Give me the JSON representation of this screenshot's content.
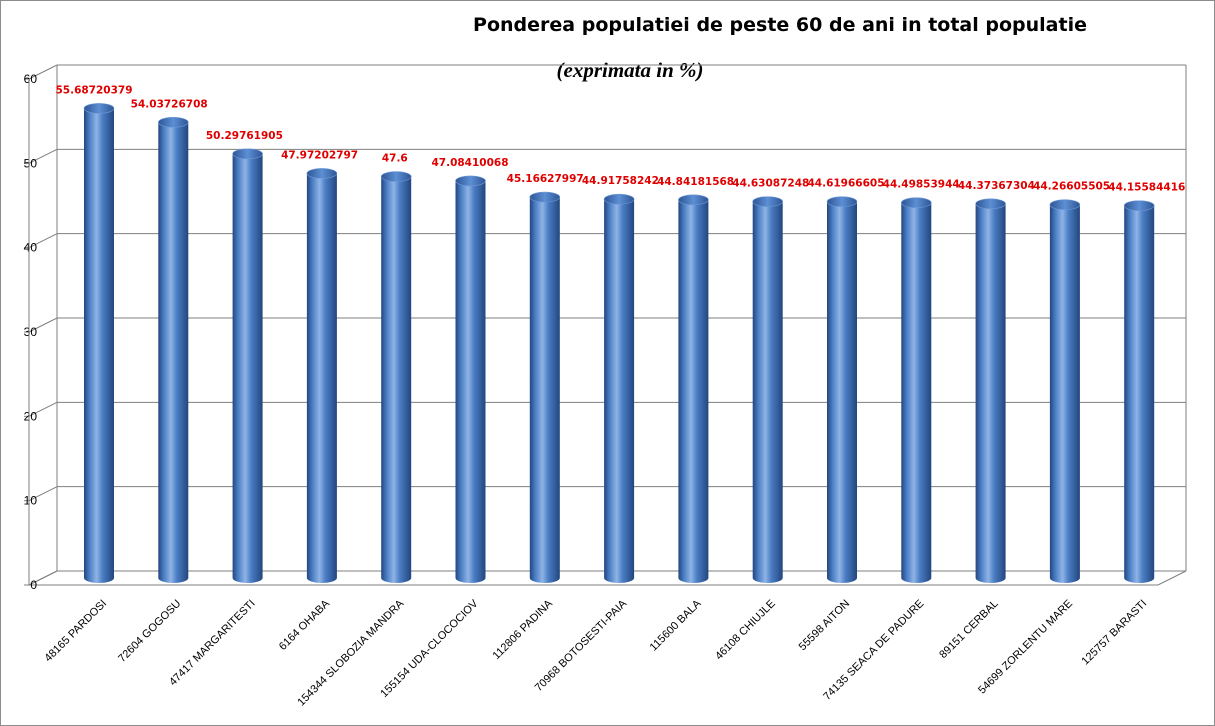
{
  "chart_data": {
    "type": "bar",
    "title": "Ponderea populatiei de peste 60 de ani in total populatie",
    "subtitle": "(exprimata in %)",
    "categories": [
      "48165 PARDOSI",
      "72604 GOGOSU",
      "47417 MARGARITESTI",
      "6164 OHABA",
      "154344 SLOBOZIA MANDRA",
      "155154 UDA-CLOCOCIOV",
      "112806 PADINA",
      "70968 BOTOSESTI-PAIA",
      "115600 BALA",
      "46108 CHIUJLE",
      "55598 AITON",
      "74135 SEACA DE PADURE",
      "89151 CERBAL",
      "54699 ZORLENTU MARE",
      "125757 BARASTI"
    ],
    "values": [
      55.68720379,
      54.03726708,
      50.29761905,
      47.97202797,
      47.6,
      47.08410068,
      45.16627997,
      44.91758242,
      44.84181568,
      44.63087248,
      44.61966605,
      44.49853944,
      44.37367304,
      44.26605505,
      44.15584416
    ],
    "data_labels": [
      "55.68720379",
      "54.03726708",
      "50.29761905",
      "47.97202797",
      "47.6",
      "47.08410068",
      "45.16627997",
      "44.91758242",
      "44.84181568",
      "44.63087248",
      "44.61966605",
      "44.49853944",
      "44.37367304",
      "44.26605505",
      "44.15584416"
    ],
    "yticks": [
      "0",
      "10",
      "20",
      "30",
      "40",
      "50",
      "60"
    ],
    "ylim": [
      0,
      60
    ],
    "grid": true,
    "colors": {
      "bar_main": "#4a7dc4",
      "bar_light": "#8fb4e6",
      "bar_dark": "#23467e",
      "bar_top": "#3e6db0",
      "data_label": "#e00000",
      "grid": "#7f7f7f"
    }
  }
}
